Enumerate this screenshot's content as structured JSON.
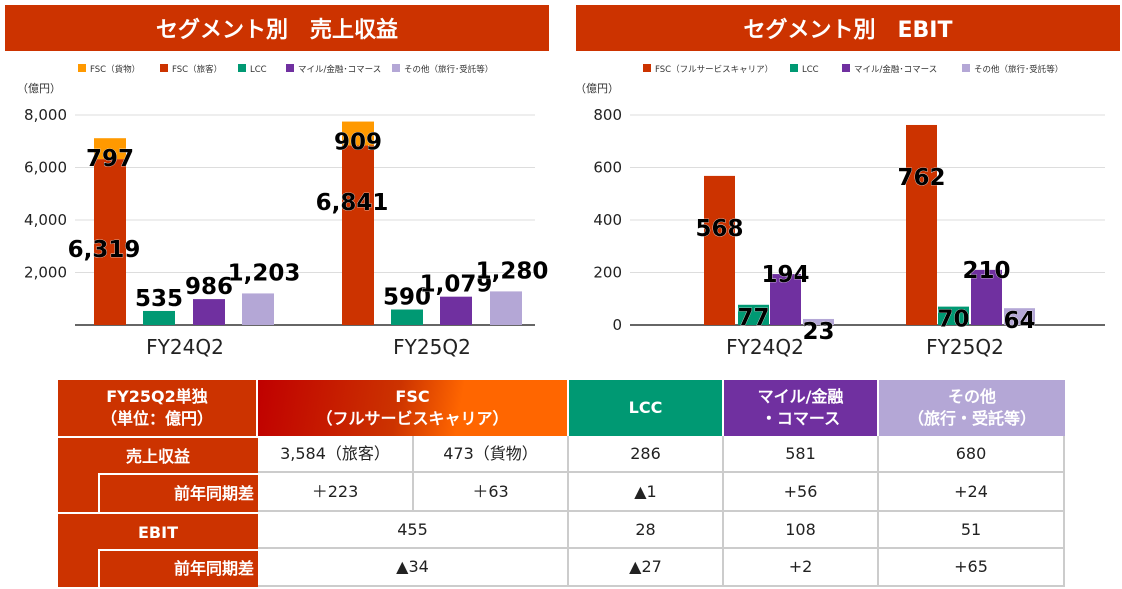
{
  "titles": {
    "left": "セグメント別　売上収益",
    "right": "セグメント別　EBIT"
  },
  "colors": {
    "fsc_cargo": "#FF9900",
    "fsc": "#CC3300",
    "lcc": "#009973",
    "mile": "#7030A0",
    "other": "#B4A7D6",
    "header": "#CC3300"
  },
  "chart_data": [
    {
      "type": "bar",
      "stacked_first": true,
      "ylabel": "（億円）",
      "ylim": [
        0,
        8000
      ],
      "yticks": [
        "0",
        "2,000",
        "4,000",
        "6,000",
        "8,000"
      ],
      "yticks_shown": [
        "2,000",
        "4,000",
        "6,000",
        "8,000"
      ],
      "categories": [
        "FY24Q2",
        "FY25Q2"
      ],
      "grid": true,
      "legend": "top",
      "series": [
        {
          "name": "FSC（貨物）",
          "values": [
            797,
            909
          ],
          "labels": [
            "797",
            "909"
          ],
          "color": "#FF9900"
        },
        {
          "name": "FSC（旅客）",
          "values": [
            6319,
            6841
          ],
          "labels": [
            "6,319",
            "6,841"
          ],
          "color": "#CC3300"
        },
        {
          "name": "LCC",
          "values": [
            535,
            590
          ],
          "labels": [
            "535",
            "590"
          ],
          "color": "#009973"
        },
        {
          "name": "マイル/金融･コマース",
          "values": [
            986,
            1079
          ],
          "labels": [
            "986",
            "1,079"
          ],
          "color": "#7030A0"
        },
        {
          "name": "その他（旅行･受託等）",
          "values": [
            1203,
            1280
          ],
          "labels": [
            "1,203",
            "1,280"
          ],
          "color": "#B4A7D6"
        }
      ]
    },
    {
      "type": "bar",
      "ylabel": "（億円）",
      "ylim": [
        0,
        800
      ],
      "yticks": [
        "0",
        "200",
        "400",
        "600",
        "800"
      ],
      "categories": [
        "FY24Q2",
        "FY25Q2"
      ],
      "grid": true,
      "legend": "top",
      "series": [
        {
          "name": "FSC（フルサービスキャリア）",
          "values": [
            568,
            762
          ],
          "labels": [
            "568",
            "762"
          ],
          "color": "#CC3300"
        },
        {
          "name": "LCC",
          "values": [
            77,
            70
          ],
          "labels": [
            "77",
            "70"
          ],
          "color": "#009973"
        },
        {
          "name": "マイル/金融･コマース",
          "values": [
            194,
            210
          ],
          "labels": [
            "194",
            "210"
          ],
          "color": "#7030A0"
        },
        {
          "name": "その他（旅行･受託等）",
          "values": [
            23,
            64
          ],
          "labels": [
            "23",
            "64"
          ],
          "color": "#B4A7D6"
        }
      ]
    }
  ],
  "table": {
    "corner": "FY25Q2単独\n（単位：億円）",
    "headers": [
      "FSC\n（フルサービスキャリア）",
      "LCC",
      "マイル/金融\n・コマース",
      "その他\n（旅行・受託等）"
    ],
    "row_revenue": "売上収益",
    "row_ebit": "EBIT",
    "row_diff": "前年同期差",
    "revenue": [
      "3,584（旅客）",
      "473（貨物）",
      "286",
      "581",
      "680"
    ],
    "revenue_diff": [
      "＋223",
      "＋63",
      "▲1",
      "+56",
      "+24"
    ],
    "ebit": [
      "455",
      "28",
      "108",
      "51"
    ],
    "ebit_diff": [
      "▲34",
      "▲27",
      "+2",
      "+65"
    ]
  }
}
